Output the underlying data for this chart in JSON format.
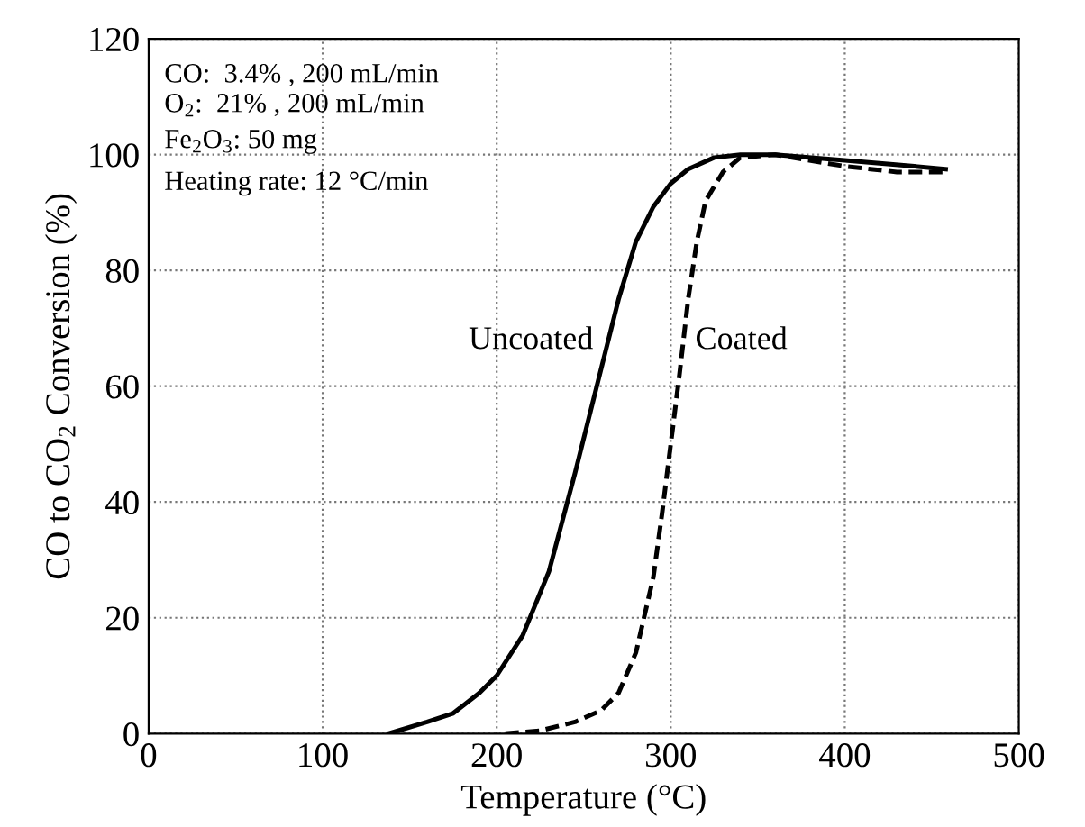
{
  "chart_data": {
    "type": "line",
    "xlabel": "Temperature (°C)",
    "ylabel": "CO to CO$_{2}$ Conversion (%)",
    "xlim": [
      0,
      500
    ],
    "xticks": [
      0,
      100,
      200,
      300,
      400,
      500
    ],
    "ylim": [
      0,
      120
    ],
    "yticks": [
      0,
      20,
      40,
      60,
      80,
      100,
      120
    ],
    "grid": true,
    "marker": "none",
    "annotations": [
      "CO:  3.4% , 200 mL/min",
      "O$_{2}$:  21% , 200 mL/min",
      "Fe$_{2}$O$_{3}$: 50 mg",
      "Heating rate: 12 °C/min"
    ],
    "series": [
      {
        "name": "Uncoated",
        "color": "#000000",
        "line_style": "solid",
        "x": [
          138,
          160,
          175,
          190,
          200,
          215,
          230,
          245,
          260,
          270,
          280,
          290,
          300,
          310,
          325,
          340,
          360,
          400,
          440,
          458
        ],
        "values": [
          0,
          2,
          3.5,
          7,
          10,
          17,
          28,
          45,
          63,
          75,
          85,
          91,
          95,
          97.5,
          99.5,
          100,
          100,
          99,
          98,
          97.5
        ]
      },
      {
        "name": "Coated",
        "color": "#000000",
        "line_style": "dashed",
        "x": [
          205,
          225,
          245,
          260,
          270,
          280,
          290,
          295,
          300,
          305,
          310,
          315,
          320,
          330,
          340,
          360,
          400,
          430,
          458
        ],
        "values": [
          0,
          0.5,
          2,
          4,
          7,
          14,
          27,
          38,
          50,
          62,
          75,
          85,
          92,
          97,
          99.5,
          100,
          98,
          97,
          97
        ]
      }
    ]
  }
}
